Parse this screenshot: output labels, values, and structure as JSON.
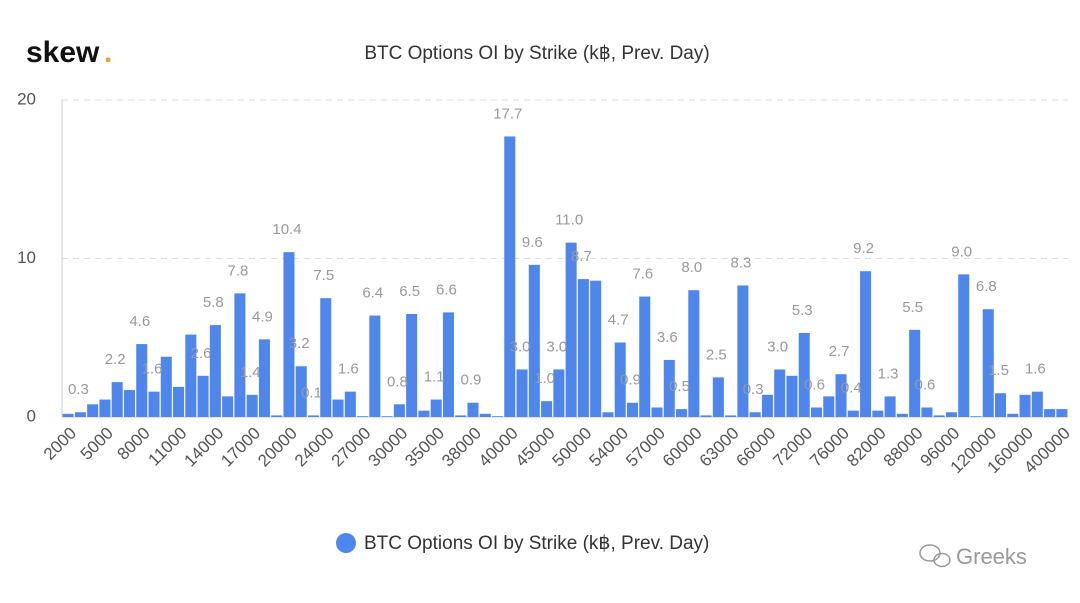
{
  "brand": "skew",
  "brand_mark": ".",
  "watermark": "Greeks",
  "chart_data": {
    "type": "bar",
    "title": "BTC Options OI by Strike (k฿, Prev. Day)",
    "categories": [
      "2000",
      null,
      null,
      "5000",
      null,
      null,
      "8000",
      null,
      null,
      "11000",
      null,
      null,
      "14000",
      null,
      null,
      "17000",
      null,
      null,
      "20000",
      null,
      null,
      "24000",
      null,
      null,
      "27000",
      null,
      null,
      "30000",
      null,
      null,
      "35000",
      null,
      null,
      "38000",
      null,
      null,
      "40000",
      null,
      null,
      "45000",
      null,
      null,
      "50000",
      null,
      null,
      "54000",
      null,
      null,
      "57000",
      null,
      null,
      "60000",
      null,
      null,
      "63000",
      null,
      null,
      "66000",
      null,
      null,
      "72000",
      null,
      null,
      "76000",
      null,
      null,
      "82000",
      null,
      null,
      "88000",
      null,
      null,
      "96000",
      null,
      null,
      "120000",
      null,
      null,
      "160000",
      null,
      null,
      "400000"
    ],
    "series": [
      {
        "name": "BTC Options OI by Strike (k฿, Prev. Day)",
        "color": "#4f86ec",
        "values": [
          0.2,
          0.3,
          0.8,
          1.1,
          2.2,
          1.7,
          4.6,
          1.6,
          3.8,
          1.9,
          5.2,
          2.6,
          5.8,
          1.3,
          7.8,
          1.4,
          4.9,
          0.1,
          10.4,
          3.2,
          0.1,
          7.5,
          1.1,
          1.6,
          0.05,
          6.4,
          0.05,
          0.8,
          6.5,
          0.4,
          1.1,
          6.6,
          0.1,
          0.9,
          0.2,
          0.05,
          17.7,
          3,
          9.6,
          1,
          3,
          11,
          8.7,
          8.6,
          0.3,
          4.7,
          0.9,
          7.6,
          0.6,
          3.6,
          0.5,
          8,
          0.1,
          2.5,
          0.1,
          8.3,
          0.3,
          1.4,
          3,
          2.6,
          5.3,
          0.6,
          1.3,
          2.7,
          0.4,
          9.2,
          0.4,
          1.3,
          0.2,
          5.5,
          0.6,
          0.1,
          0.3,
          9,
          0.05,
          6.8,
          1.5,
          0.2,
          1.4,
          1.6,
          0.5,
          0.5
        ],
        "value_labels": [
          null,
          "0.3",
          null,
          null,
          "2.2",
          null,
          "4.6",
          "1.6",
          null,
          null,
          null,
          "2.6",
          "5.8",
          null,
          "7.8",
          "1.4",
          "4.9",
          null,
          "10.4",
          "3.2",
          "0.1",
          "7.5",
          null,
          "1.6",
          null,
          "6.4",
          null,
          "0.8",
          "6.5",
          null,
          "1.1",
          "6.6",
          null,
          "0.9",
          null,
          null,
          "17.7",
          "3.0",
          "9.6",
          "1.0",
          "3.0",
          "11.0",
          "8.7",
          null,
          null,
          "4.7",
          "0.9",
          "7.6",
          null,
          "3.6",
          "0.5",
          "8.0",
          null,
          "2.5",
          null,
          "8.3",
          "0.3",
          null,
          "3.0",
          null,
          "5.3",
          "0.6",
          null,
          "2.7",
          "0.4",
          "9.2",
          null,
          "1.3",
          null,
          "5.5",
          "0.6",
          null,
          null,
          "9.0",
          null,
          "6.8",
          "1.5",
          null,
          null,
          "1.6",
          null,
          null
        ]
      }
    ],
    "ylim": [
      0,
      20
    ],
    "yticks": [
      0,
      10,
      20
    ],
    "grid": true,
    "legend": "bottom"
  }
}
